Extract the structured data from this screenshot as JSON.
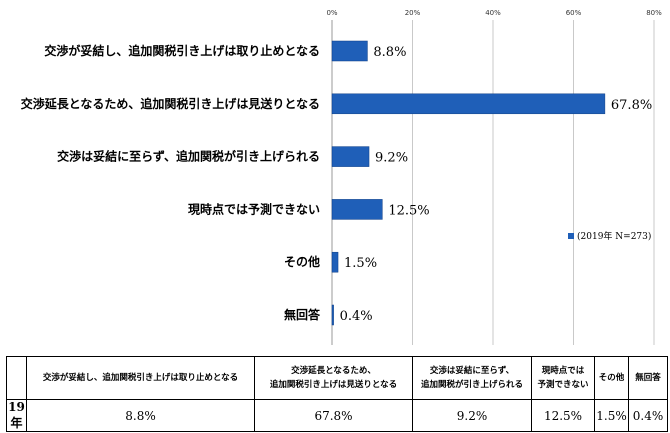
{
  "chart_data": {
    "type": "bar",
    "orientation": "horizontal",
    "categories": [
      "交渉が妥結し、追加関税引き上げは取り止めとなる",
      "交渉延長となるため、追加関税引き上げは見送りとなる",
      "交渉は妥結に至らず、追加関税が引き上げられる",
      "現時点では予測できない",
      "その他",
      "無回答"
    ],
    "series": [
      {
        "name": "(2019年 N=273)",
        "values": [
          8.8,
          67.8,
          9.2,
          12.5,
          1.5,
          0.4
        ]
      }
    ],
    "value_labels": [
      "8.8%",
      "67.8%",
      "9.2%",
      "12.5%",
      "1.5%",
      "0.4%"
    ],
    "x_ticks": [
      "0%",
      "20%",
      "40%",
      "60%",
      "80%"
    ],
    "xlim": [
      0,
      80
    ],
    "grid": true,
    "legend_position": "right",
    "bar_color": "#1f5fb8",
    "grid_color": "#c9c9c9"
  },
  "table": {
    "headers": [
      [
        "交渉が妥結し、追加関税引き上げは取り止めとなる"
      ],
      [
        "交渉延長となるため、",
        "追加関税引き上げは見送りとなる"
      ],
      [
        "交渉は妥結に至らず、",
        "追加関税が引き上げられる"
      ],
      [
        "現時点では",
        "予測できない"
      ],
      [
        "その他"
      ],
      [
        "無回答"
      ]
    ],
    "row_label": "19年",
    "values": [
      "8.8%",
      "67.8%",
      "9.2%",
      "12.5%",
      "1.5%",
      "0.4%"
    ]
  }
}
